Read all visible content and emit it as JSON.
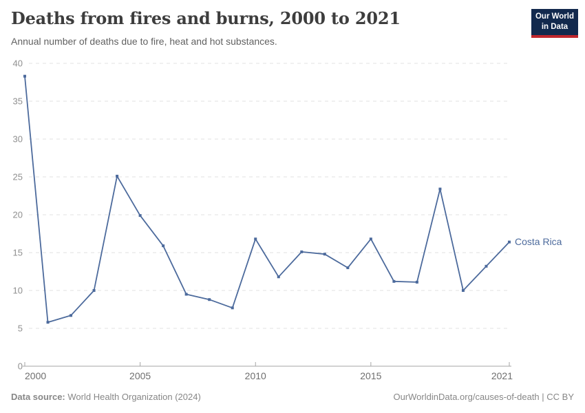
{
  "header": {
    "title": "Deaths from fires and burns, 2000 to 2021",
    "subtitle": "Annual number of deaths due to fire, heat and hot substances.",
    "logo": {
      "line1": "Our World",
      "line2": "in Data"
    }
  },
  "chart_data": {
    "type": "line",
    "title": "Deaths from fires and burns, 2000 to 2021",
    "subtitle": "Annual number of deaths due to fire, heat and hot substances.",
    "xlabel": "",
    "ylabel": "",
    "xlim": [
      2000,
      2021
    ],
    "ylim": [
      0,
      40
    ],
    "x_ticks": [
      2000,
      2005,
      2010,
      2015,
      2021
    ],
    "x_tick_labels": [
      "2000",
      "2005",
      "2010",
      "2015",
      "2021"
    ],
    "y_ticks": [
      0,
      5,
      10,
      15,
      20,
      25,
      30,
      35,
      40
    ],
    "grid": "horizontal-dashed",
    "legend": "inline-end-label",
    "series": [
      {
        "name": "Costa Rica",
        "color": "#4C6A9C",
        "x": [
          2000,
          2001,
          2002,
          2003,
          2004,
          2005,
          2006,
          2007,
          2008,
          2009,
          2010,
          2011,
          2012,
          2013,
          2014,
          2015,
          2016,
          2017,
          2018,
          2019,
          2020,
          2021
        ],
        "values": [
          38.3,
          5.8,
          6.7,
          10.0,
          25.1,
          19.9,
          15.9,
          9.5,
          8.8,
          7.7,
          16.8,
          11.8,
          15.1,
          14.8,
          13.0,
          16.8,
          11.2,
          11.1,
          23.4,
          10.0,
          13.2,
          16.4
        ]
      }
    ]
  },
  "footer": {
    "source_label": "Data source:",
    "source_text": "World Health Organization (2024)",
    "credit": "OurWorldinData.org/causes-of-death | CC BY"
  },
  "colors": {
    "line": "#4C6A9C",
    "series_label": "#4C6A9C",
    "title": "#3d3d3d",
    "subtitle": "#616161",
    "y_tick_label": "#8f8f8f",
    "x_tick_label": "#6e6e6e",
    "gridline": "#e0e0e0",
    "axis_line": "#a5a5a5",
    "footer_text": "#878787",
    "logo_bg": "#12294d",
    "logo_accent": "#c0272d"
  }
}
